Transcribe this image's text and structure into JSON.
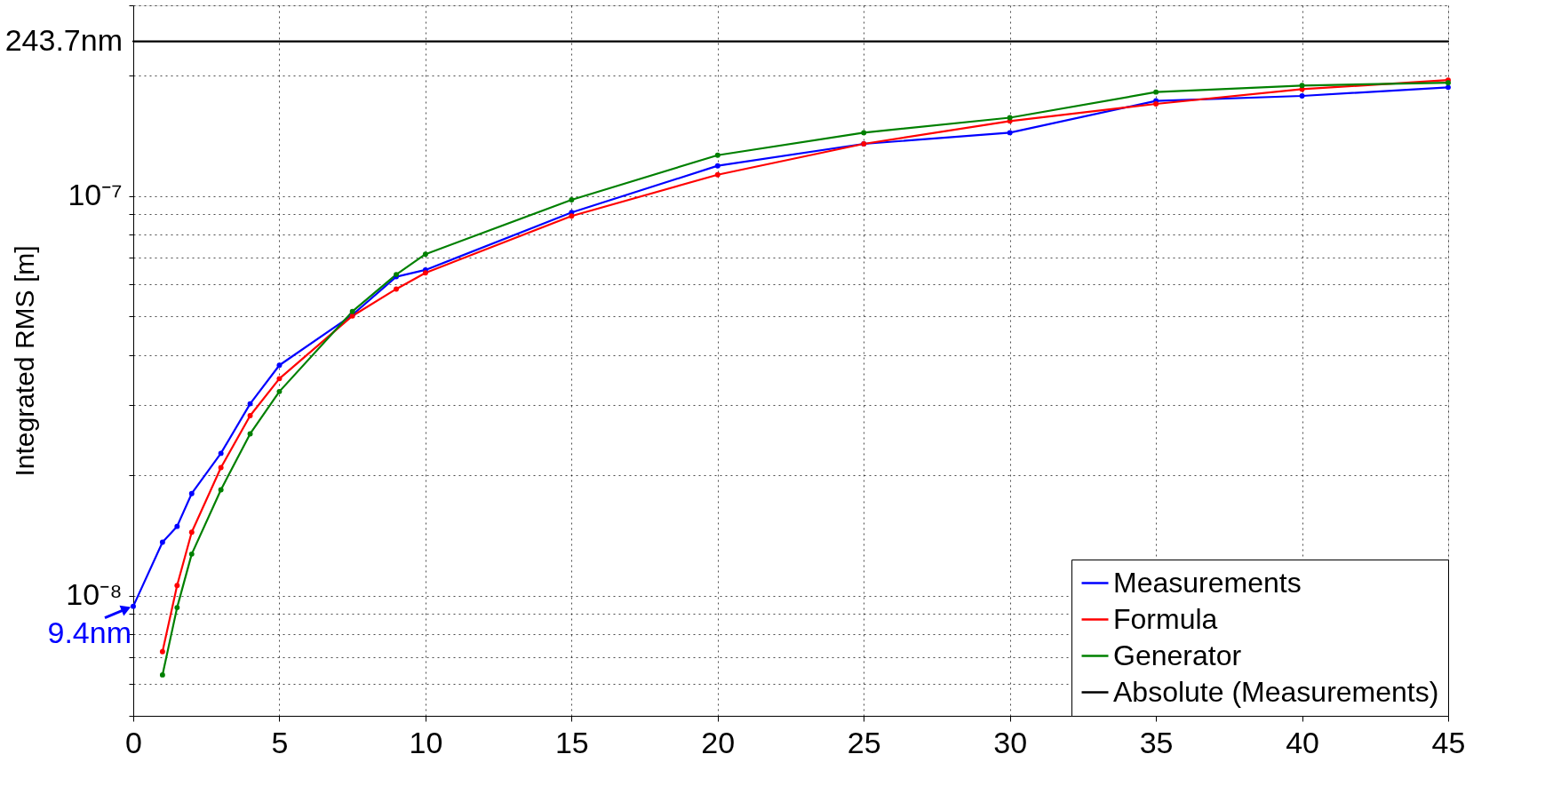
{
  "chart_data": {
    "type": "line",
    "ylabel": "Integrated RMS [m]",
    "log": "y",
    "grid": true,
    "legend": "bottom right",
    "xlim": [
      0,
      45
    ],
    "xticks": [
      0,
      5,
      10,
      15,
      20,
      25,
      30,
      35,
      40,
      45
    ],
    "ylim": [
      5e-09,
      3e-07
    ],
    "yticks": [
      {
        "value": 5e-09,
        "label": null
      },
      {
        "value": 6e-09,
        "label": null
      },
      {
        "value": 7e-09,
        "label": null
      },
      {
        "value": 8e-09,
        "label": null
      },
      {
        "value": 9e-09,
        "label": null
      },
      {
        "value": 1e-08,
        "label": "10⁻⁸"
      },
      {
        "value": 2e-08,
        "label": null
      },
      {
        "value": 3e-08,
        "label": null
      },
      {
        "value": 4e-08,
        "label": null
      },
      {
        "value": 5e-08,
        "label": null
      },
      {
        "value": 6e-08,
        "label": null
      },
      {
        "value": 7e-08,
        "label": null
      },
      {
        "value": 8e-08,
        "label": null
      },
      {
        "value": 9e-08,
        "label": null
      },
      {
        "value": 1e-07,
        "label": "10⁻⁷"
      },
      {
        "value": 2e-07,
        "label": null
      },
      {
        "value": 3e-07,
        "label": null
      }
    ],
    "series": [
      {
        "name": "Measurements",
        "color": "#0000ff",
        "marker": "circle",
        "x": [
          0,
          1,
          1.5,
          2,
          3,
          4,
          5,
          7.5,
          9,
          10,
          15,
          20,
          25,
          30,
          35,
          40,
          45
        ],
        "values": [
          9.4e-09,
          1.36e-08,
          1.49e-08,
          1.8e-08,
          2.27e-08,
          3.02e-08,
          3.77e-08,
          5.04e-08,
          6.28e-08,
          6.53e-08,
          9.09e-08,
          1.19e-07,
          1.35e-07,
          1.44e-07,
          1.73e-07,
          1.78e-07,
          1.87e-07
        ]
      },
      {
        "name": "Formula",
        "color": "#ff0000",
        "marker": "circle",
        "x": [
          1,
          1.5,
          2,
          3,
          4,
          5,
          7.5,
          9,
          10,
          15,
          20,
          25,
          30,
          35,
          40,
          45
        ],
        "values": [
          7.24e-09,
          1.06e-08,
          1.44e-08,
          2.09e-08,
          2.82e-08,
          3.49e-08,
          5.01e-08,
          5.85e-08,
          6.42e-08,
          8.91e-08,
          1.13e-07,
          1.35e-07,
          1.54e-07,
          1.7e-07,
          1.85e-07,
          1.95e-07
        ]
      },
      {
        "name": "Generator",
        "color": "#008000",
        "marker": "circle",
        "x": [
          1,
          1.5,
          2,
          3,
          4,
          5,
          7.5,
          9,
          10,
          15,
          20,
          25,
          30,
          35,
          40,
          45
        ],
        "values": [
          6.33e-09,
          9.33e-09,
          1.27e-08,
          1.84e-08,
          2.54e-08,
          3.24e-08,
          5.14e-08,
          6.36e-08,
          7.15e-08,
          9.78e-08,
          1.265e-07,
          1.44e-07,
          1.57e-07,
          1.82e-07,
          1.89e-07,
          1.92e-07
        ]
      },
      {
        "name": "Absolute (Measurements)",
        "color": "#000000",
        "marker": "none",
        "x": [
          0,
          45
        ],
        "values": [
          2.437e-07,
          2.437e-07
        ]
      }
    ],
    "annotations": [
      "243.7nm",
      {
        "text": "9.4nm",
        "x": 0,
        "y": 9.4e-09
      }
    ]
  }
}
